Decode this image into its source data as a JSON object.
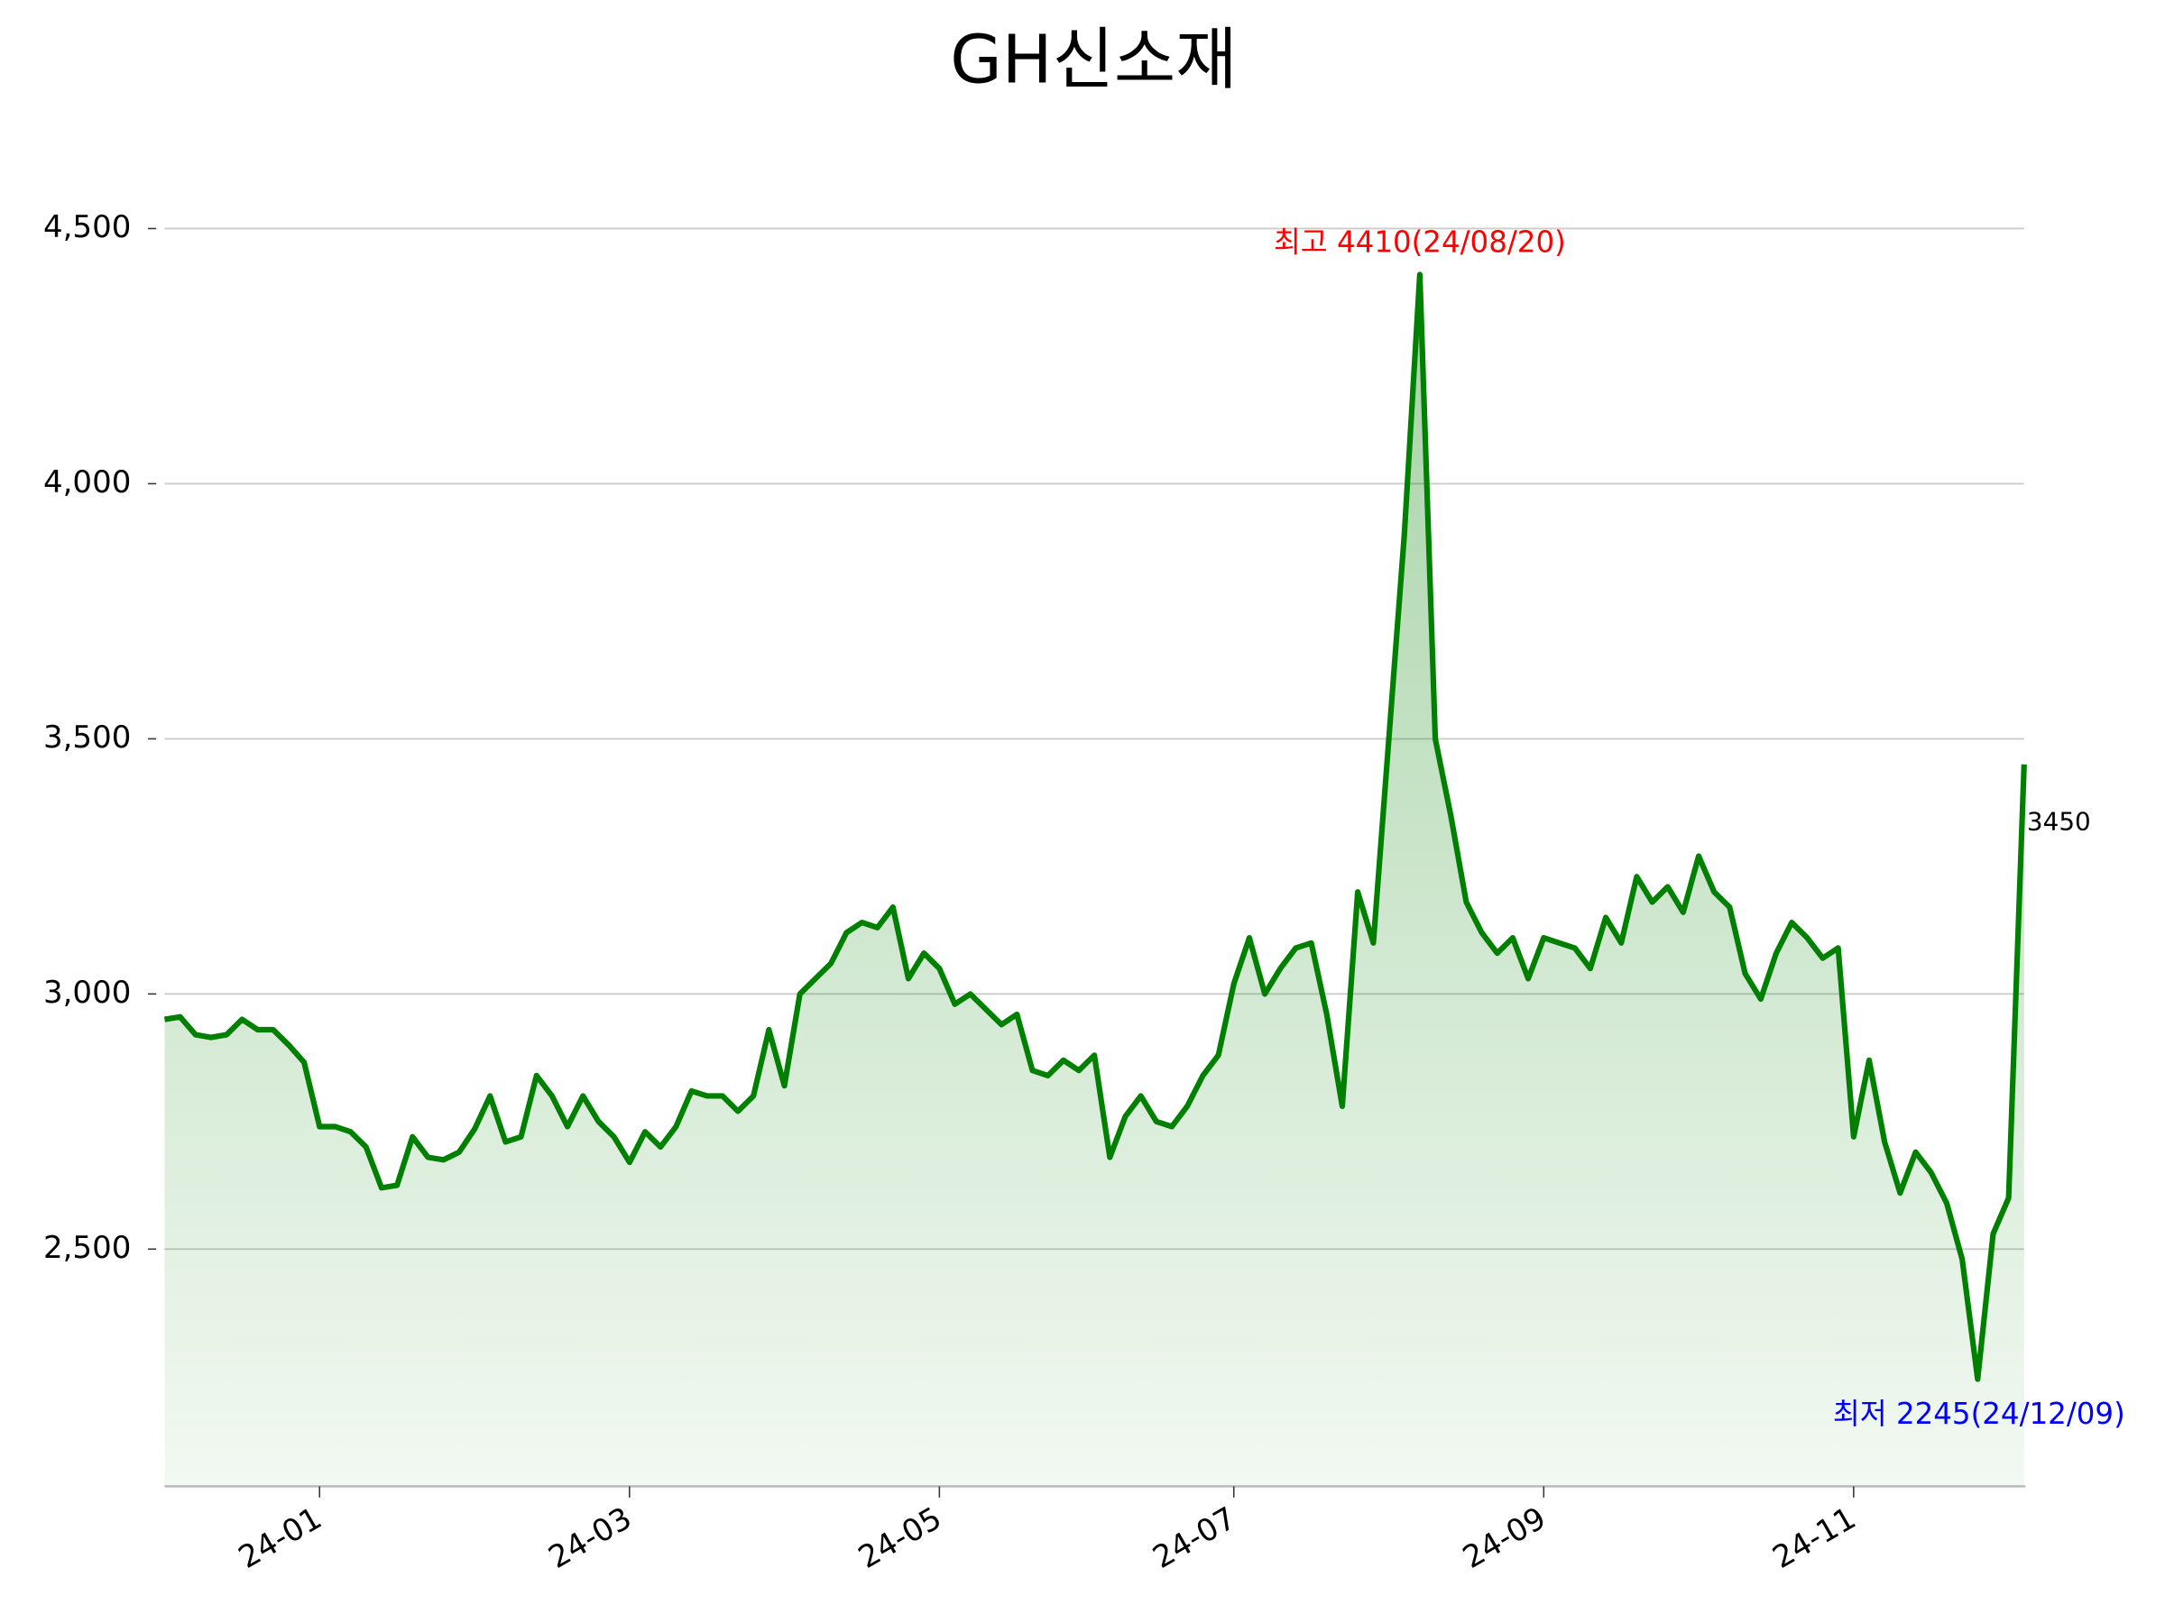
{
  "chart_data": {
    "type": "line",
    "title": "GH신소재",
    "categories": [
      null,
      null,
      null,
      null,
      null,
      null,
      null,
      null,
      null,
      null,
      "24-01",
      null,
      null,
      null,
      null,
      null,
      null,
      null,
      null,
      null,
      null,
      null,
      null,
      null,
      null,
      null,
      null,
      null,
      null,
      null,
      "24-03",
      null,
      null,
      null,
      null,
      null,
      null,
      null,
      null,
      null,
      null,
      null,
      null,
      null,
      null,
      null,
      null,
      null,
      null,
      null,
      "24-05",
      null,
      null,
      null,
      null,
      null,
      null,
      null,
      null,
      null,
      null,
      null,
      null,
      null,
      null,
      null,
      null,
      null,
      null,
      "24-07",
      null,
      null,
      null,
      null,
      null,
      null,
      null,
      null,
      null,
      null,
      null,
      null,
      null,
      null,
      null,
      null,
      null,
      null,
      null,
      "24-09",
      null,
      null,
      null,
      null,
      null,
      null,
      null,
      null,
      null,
      null,
      null,
      null,
      null,
      null,
      null,
      null,
      null,
      null,
      null,
      "24-11",
      null,
      null,
      null,
      null,
      null,
      null,
      null,
      null,
      null,
      null,
      null
    ],
    "series": [
      {
        "name": "GH신소재",
        "color": "#008000",
        "values": [
          2950,
          2955,
          2920,
          2915,
          2920,
          2950,
          2930,
          2930,
          2900,
          2866,
          2740,
          2740,
          2730,
          2700,
          2620,
          2625,
          2720,
          2680,
          2675,
          2690,
          2735,
          2800,
          2710,
          2720,
          2840,
          2800,
          2740,
          2800,
          2750,
          2720,
          2670,
          2730,
          2700,
          2740,
          2810,
          2800,
          2800,
          2770,
          2800,
          2930,
          2820,
          3000,
          3030,
          3060,
          3120,
          3140,
          3130,
          3170,
          3030,
          3080,
          3050,
          2980,
          3000,
          2970,
          2940,
          2960,
          2850,
          2840,
          2870,
          2850,
          2880,
          2680,
          2760,
          2800,
          2750,
          2740,
          2780,
          2840,
          2880,
          3020,
          3110,
          3000,
          3050,
          3090,
          3100,
          2960,
          2780,
          3200,
          3100,
          3500,
          3900,
          4410,
          3500,
          3350,
          3180,
          3120,
          3080,
          3110,
          3030,
          3110,
          3100,
          3090,
          3050,
          3150,
          3100,
          3230,
          3180,
          3210,
          3160,
          3270,
          3200,
          3170,
          3040,
          2990,
          3080,
          3140,
          3110,
          3070,
          3090,
          2720,
          2870,
          2710,
          2610,
          2690,
          2650,
          2590,
          2480,
          2245,
          2530,
          2600,
          3450
        ]
      }
    ],
    "ylim": [
      2035,
      4620
    ],
    "yticks": [
      {
        "value": 2500,
        "label": "2,500"
      },
      {
        "value": 3000,
        "label": "3,000"
      },
      {
        "value": 3500,
        "label": "3,500"
      },
      {
        "value": 4000,
        "label": "4,000"
      },
      {
        "value": 4500,
        "label": "4,500"
      }
    ],
    "grid": true,
    "annotations": [
      {
        "text": "최고 4410(24/08/20)",
        "color": "red"
      },
      {
        "text": "최저 2245(24/12/09)",
        "color": "blue"
      }
    ]
  }
}
